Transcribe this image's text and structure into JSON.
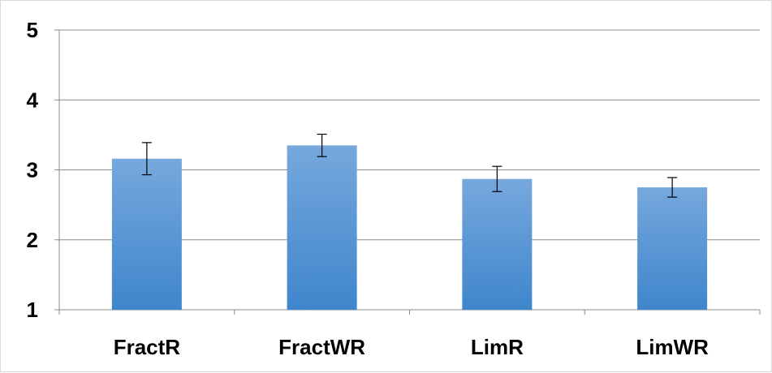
{
  "chart_data": {
    "type": "bar",
    "categories": [
      "FractR",
      "FractWR",
      "LimR",
      "LimWR"
    ],
    "values": [
      3.16,
      3.35,
      2.87,
      2.75
    ],
    "error": [
      0.23,
      0.16,
      0.18,
      0.14
    ],
    "title": "",
    "xlabel": "",
    "ylabel": "",
    "ylim": [
      1,
      5
    ],
    "yticks": [
      "1",
      "2",
      "3",
      "4",
      "5"
    ],
    "grid": true,
    "colors": {
      "bar_top": "#76a8dd",
      "bar_bottom": "#3f86cc",
      "grid": "#8c8c8c",
      "error_bar": "#000000"
    }
  }
}
